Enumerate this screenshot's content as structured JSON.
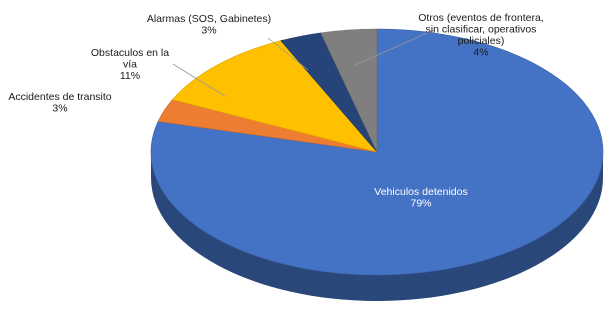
{
  "chart_data": {
    "type": "pie",
    "style": "3d",
    "slices": [
      {
        "label_lines": [
          "Vehiculos detenidos"
        ],
        "pct_label": "79%",
        "value": 79,
        "color": "#4472c4"
      },
      {
        "label_lines": [
          "Accidentes de transito"
        ],
        "pct_label": "3%",
        "value": 3,
        "color": "#ed7d31"
      },
      {
        "label_lines": [
          "Obstaculos en la",
          "vía"
        ],
        "pct_label": "11%",
        "value": 11,
        "color": "#ffc000"
      },
      {
        "label_lines": [
          "Alarmas (SOS, Gabinetes)"
        ],
        "pct_label": "3%",
        "value": 3,
        "color": "#264478"
      },
      {
        "label_lines": [
          "Otros (eventos de frontera,",
          "sin clasificar, operativos",
          "policiales)"
        ],
        "pct_label": "4%",
        "value": 4,
        "color": "#7f7f7f"
      }
    ]
  }
}
